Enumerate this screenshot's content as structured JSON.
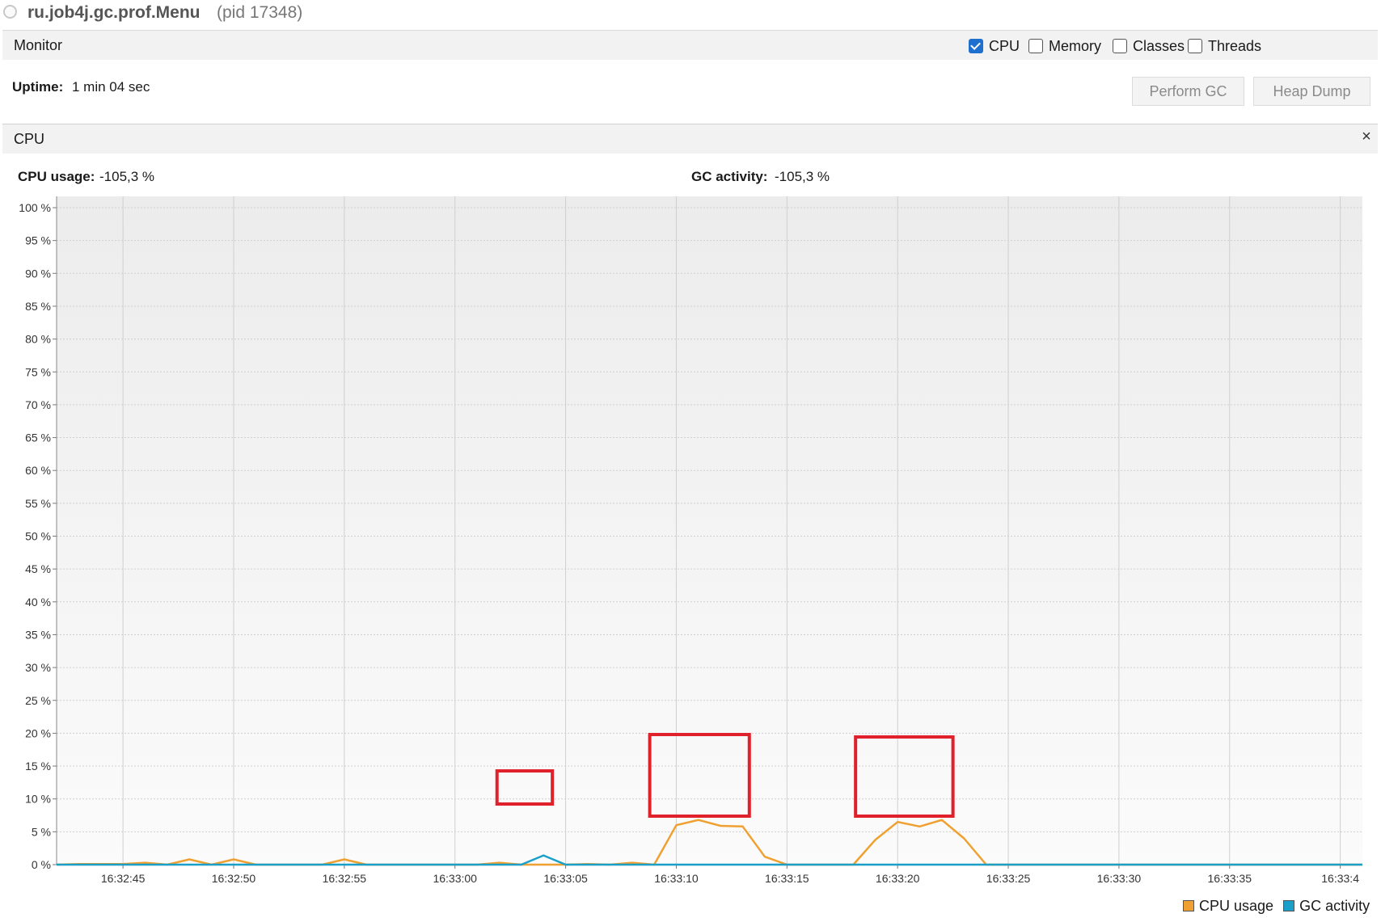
{
  "window": {
    "title": "ru.job4j.gc.prof.Menu",
    "pid": "(pid 17348)"
  },
  "monitor": {
    "title": "Monitor",
    "checkboxes": [
      {
        "label": "CPU",
        "checked": true
      },
      {
        "label": "Memory",
        "checked": false
      },
      {
        "label": "Classes",
        "checked": false
      },
      {
        "label": "Threads",
        "checked": false
      }
    ],
    "uptime_label": "Uptime:",
    "uptime_value": "1 min 04 sec",
    "perform_gc_label": "Perform GC",
    "heap_dump_label": "Heap Dump"
  },
  "cpu_panel": {
    "title": "CPU",
    "close_icon": "×",
    "cpu_usage_label": "CPU usage:",
    "cpu_usage_value": "-105,3 %",
    "gc_activity_label": "GC activity:",
    "gc_activity_value": "-105,3 %"
  },
  "chart_data": {
    "type": "line",
    "ylim": [
      0,
      100
    ],
    "y_ticks": [
      "0 %",
      "5 %",
      "10 %",
      "15 %",
      "20 %",
      "25 %",
      "30 %",
      "35 %",
      "40 %",
      "45 %",
      "50 %",
      "55 %",
      "60 %",
      "65 %",
      "70 %",
      "75 %",
      "80 %",
      "85 %",
      "90 %",
      "95 %",
      "100 %"
    ],
    "x_ticks": [
      "16:32:45",
      "16:32:50",
      "16:32:55",
      "16:33:00",
      "16:33:05",
      "16:33:10",
      "16:33:15",
      "16:33:20",
      "16:33:25",
      "16:33:30",
      "16:33:35",
      "16:33:4"
    ],
    "x_range_seconds": [
      -3,
      56
    ],
    "grid": true,
    "legend_position": "bottom-right",
    "series": [
      {
        "name": "CPU usage",
        "color": "#f0a030",
        "points": [
          [
            -3,
            0
          ],
          [
            -2,
            0.1
          ],
          [
            -1,
            0.1
          ],
          [
            0,
            0.1
          ],
          [
            1,
            0.3
          ],
          [
            2,
            0
          ],
          [
            3,
            0.8
          ],
          [
            4,
            0
          ],
          [
            5,
            0.8
          ],
          [
            6,
            0
          ],
          [
            7,
            0
          ],
          [
            8,
            0
          ],
          [
            9,
            0
          ],
          [
            10,
            0.8
          ],
          [
            11,
            0
          ],
          [
            12,
            0
          ],
          [
            13,
            0
          ],
          [
            14,
            0
          ],
          [
            15,
            0
          ],
          [
            16,
            0
          ],
          [
            17,
            0.3
          ],
          [
            18,
            0
          ],
          [
            19,
            0
          ],
          [
            20,
            0
          ],
          [
            21,
            0.1
          ],
          [
            22,
            0
          ],
          [
            23,
            0.3
          ],
          [
            24,
            0
          ],
          [
            25,
            6
          ],
          [
            26,
            6.8
          ],
          [
            27,
            5.9
          ],
          [
            28,
            5.8
          ],
          [
            29,
            1.2
          ],
          [
            30,
            0
          ],
          [
            31,
            0
          ],
          [
            32,
            0
          ],
          [
            33,
            0
          ],
          [
            34,
            3.8
          ],
          [
            35,
            6.5
          ],
          [
            36,
            5.8
          ],
          [
            37,
            6.8
          ],
          [
            38,
            4
          ],
          [
            39,
            0
          ],
          [
            40,
            0
          ],
          [
            56,
            0
          ]
        ]
      },
      {
        "name": "GC activity",
        "color": "#1aa0c8",
        "points": [
          [
            -3,
            0
          ],
          [
            18,
            0
          ],
          [
            19,
            1.4
          ],
          [
            20,
            0
          ],
          [
            56,
            0
          ]
        ]
      }
    ],
    "annotations": [
      {
        "shape": "rectangle",
        "color": "#e0202a",
        "x_range_seconds": [
          16.9,
          19.4
        ]
      },
      {
        "shape": "rectangle",
        "color": "#e0202a",
        "x_range_seconds": [
          23.8,
          28.3
        ]
      },
      {
        "shape": "rectangle",
        "color": "#e0202a",
        "x_range_seconds": [
          33.1,
          37.5
        ]
      }
    ]
  }
}
